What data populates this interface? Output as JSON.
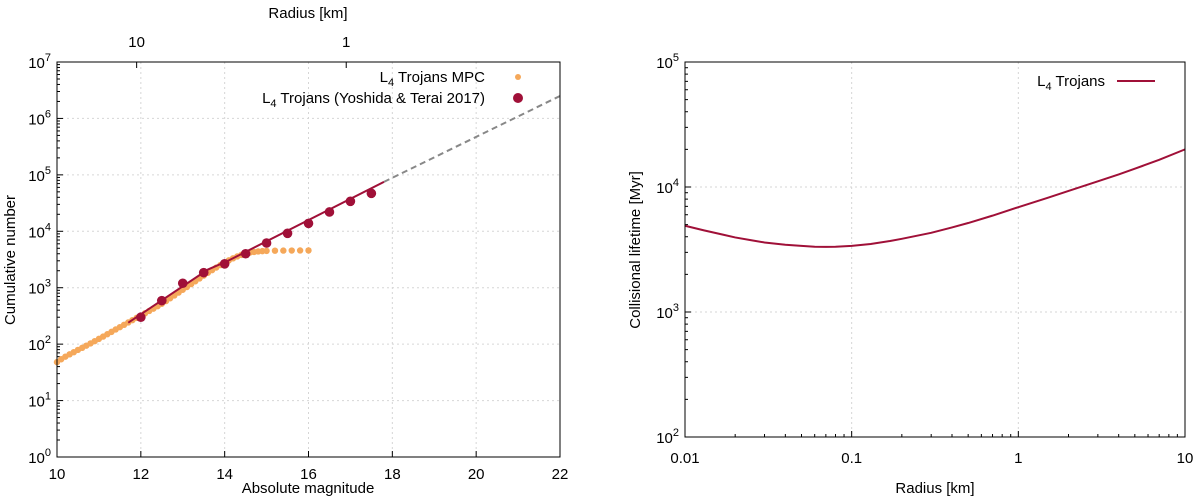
{
  "chart_data": [
    {
      "type": "scatter",
      "xlabel": "Absolute magnitude",
      "ylabel": "Cumulative number",
      "x2label": "Radius [km]",
      "xlim": [
        10,
        22
      ],
      "ylim_log10": [
        0,
        7
      ],
      "xticks": [
        "10",
        "12",
        "14",
        "16",
        "18",
        "20",
        "22"
      ],
      "x2ticks": [
        {
          "label": "10",
          "H": 11.9
        },
        {
          "label": "1",
          "H": 16.9
        }
      ],
      "legend": {
        "position": "top-right",
        "entries": [
          {
            "main": "L",
            "sub": "4",
            "rest": " Trojans MPC",
            "color": "#f5a85a"
          },
          {
            "main": "L",
            "sub": "4",
            "rest": " Trojans (Yoshida & Terai 2017)",
            "color": "#a01038"
          }
        ]
      },
      "series": [
        {
          "name": "L4 Trojans MPC",
          "color": "#f5a85a",
          "style": "small-points",
          "points": [
            [
              10.0,
              48
            ],
            [
              10.1,
              54
            ],
            [
              10.2,
              60
            ],
            [
              10.3,
              66
            ],
            [
              10.4,
              72
            ],
            [
              10.5,
              79
            ],
            [
              10.6,
              86
            ],
            [
              10.7,
              94
            ],
            [
              10.8,
              103
            ],
            [
              10.9,
              113
            ],
            [
              11.0,
              124
            ],
            [
              11.1,
              136
            ],
            [
              11.2,
              150
            ],
            [
              11.3,
              165
            ],
            [
              11.4,
              182
            ],
            [
              11.5,
              200
            ],
            [
              11.6,
              220
            ],
            [
              11.7,
              242
            ],
            [
              11.8,
              266
            ],
            [
              11.9,
              292
            ],
            [
              12.0,
              320
            ],
            [
              12.1,
              352
            ],
            [
              12.2,
              387
            ],
            [
              12.3,
              426
            ],
            [
              12.4,
              470
            ],
            [
              12.5,
              520
            ],
            [
              12.6,
              580
            ],
            [
              12.7,
              650
            ],
            [
              12.8,
              730
            ],
            [
              12.9,
              820
            ],
            [
              13.0,
              920
            ],
            [
              13.1,
              1030
            ],
            [
              13.2,
              1160
            ],
            [
              13.3,
              1300
            ],
            [
              13.4,
              1460
            ],
            [
              13.5,
              1640
            ],
            [
              13.6,
              1840
            ],
            [
              13.7,
              2050
            ],
            [
              13.8,
              2280
            ],
            [
              13.9,
              2520
            ],
            [
              14.0,
              2780
            ],
            [
              14.1,
              3050
            ],
            [
              14.2,
              3320
            ],
            [
              14.3,
              3580
            ],
            [
              14.4,
              3820
            ],
            [
              14.5,
              4020
            ],
            [
              14.6,
              4180
            ],
            [
              14.7,
              4300
            ],
            [
              14.8,
              4390
            ],
            [
              14.9,
              4450
            ],
            [
              15.0,
              4490
            ],
            [
              15.2,
              4530
            ],
            [
              15.4,
              4550
            ],
            [
              15.6,
              4560
            ],
            [
              15.8,
              4570
            ],
            [
              16.0,
              4575
            ]
          ]
        },
        {
          "name": "L4 Trojans (Yoshida & Terai 2017)",
          "color": "#a01038",
          "style": "points",
          "points": [
            [
              12.0,
              300
            ],
            [
              12.5,
              590
            ],
            [
              13.0,
              1200
            ],
            [
              13.5,
              1850
            ],
            [
              14.0,
              2650
            ],
            [
              14.5,
              4000
            ],
            [
              15.0,
              6200
            ],
            [
              15.5,
              9200
            ],
            [
              16.0,
              13800
            ],
            [
              16.5,
              22000
            ],
            [
              17.0,
              34000
            ],
            [
              17.5,
              47000
            ]
          ]
        },
        {
          "name": "fit",
          "color": "#a01038",
          "style": "line",
          "points": [
            [
              11.7,
              240
            ],
            [
              13.6,
              2100
            ],
            [
              14.1,
              3050
            ],
            [
              17.8,
              75000
            ]
          ]
        },
        {
          "name": "extrapolation",
          "color": "#888888",
          "style": "dashed-line",
          "points": [
            [
              17.8,
              75000
            ],
            [
              22.0,
              2500000
            ]
          ]
        }
      ]
    },
    {
      "type": "line",
      "xlabel": "Radius [km]",
      "ylabel": "Collisional lifetime [Myr]",
      "xlim_log10": [
        -2,
        1
      ],
      "ylim_log10": [
        2,
        5
      ],
      "xticks": [
        "0.01",
        "0.1",
        "1",
        "10"
      ],
      "legend": {
        "position": "top-right",
        "entries": [
          {
            "main": "L",
            "sub": "4",
            "rest": " Trojans",
            "color": "#a01038"
          }
        ]
      },
      "series": [
        {
          "name": "L4 Trojans",
          "color": "#a01038",
          "points": [
            [
              0.01,
              4900
            ],
            [
              0.013,
              4500
            ],
            [
              0.017,
              4150
            ],
            [
              0.02,
              3950
            ],
            [
              0.025,
              3750
            ],
            [
              0.03,
              3600
            ],
            [
              0.04,
              3450
            ],
            [
              0.05,
              3380
            ],
            [
              0.06,
              3330
            ],
            [
              0.07,
              3320
            ],
            [
              0.08,
              3330
            ],
            [
              0.1,
              3380
            ],
            [
              0.13,
              3500
            ],
            [
              0.17,
              3700
            ],
            [
              0.2,
              3850
            ],
            [
              0.3,
              4300
            ],
            [
              0.4,
              4750
            ],
            [
              0.5,
              5150
            ],
            [
              0.7,
              5900
            ],
            [
              1.0,
              6900
            ],
            [
              1.5,
              8200
            ],
            [
              2.0,
              9300
            ],
            [
              3.0,
              11100
            ],
            [
              4.0,
              12600
            ],
            [
              5.0,
              14000
            ],
            [
              7.0,
              16500
            ],
            [
              10.0,
              20000
            ]
          ]
        }
      ]
    }
  ]
}
